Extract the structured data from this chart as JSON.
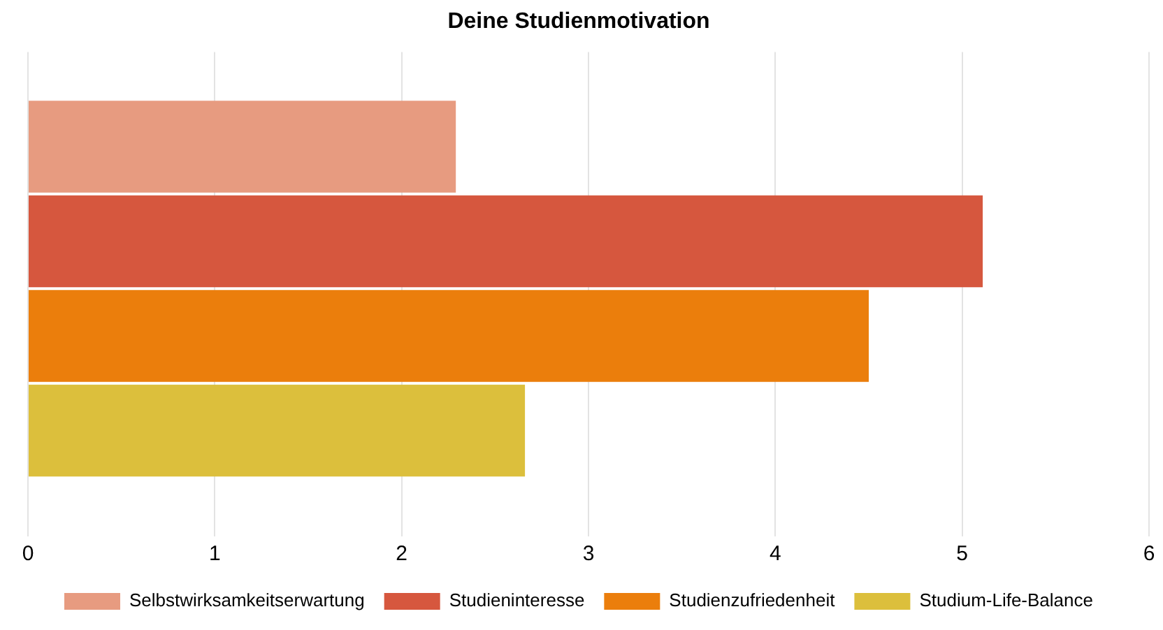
{
  "chart_data": {
    "type": "bar",
    "orientation": "horizontal",
    "title": "Deine Studienmotivation",
    "categories": [
      null
    ],
    "series": [
      {
        "name": "Selbstwirksamkeitserwartung",
        "color": "#e79b80",
        "values": [
          2.29
        ]
      },
      {
        "name": "Studieninteresse",
        "color": "#d6573e",
        "values": [
          5.11
        ]
      },
      {
        "name": "Studienzufriedenheit",
        "color": "#eb7e0c",
        "values": [
          4.5
        ]
      },
      {
        "name": "Studium-Life-Balance",
        "color": "#dcbf3c",
        "values": [
          2.66
        ]
      }
    ],
    "xlim": [
      0,
      6
    ],
    "xticks": [
      0,
      1,
      2,
      3,
      4,
      5,
      6
    ],
    "grid": "x",
    "legend": "bottom"
  }
}
